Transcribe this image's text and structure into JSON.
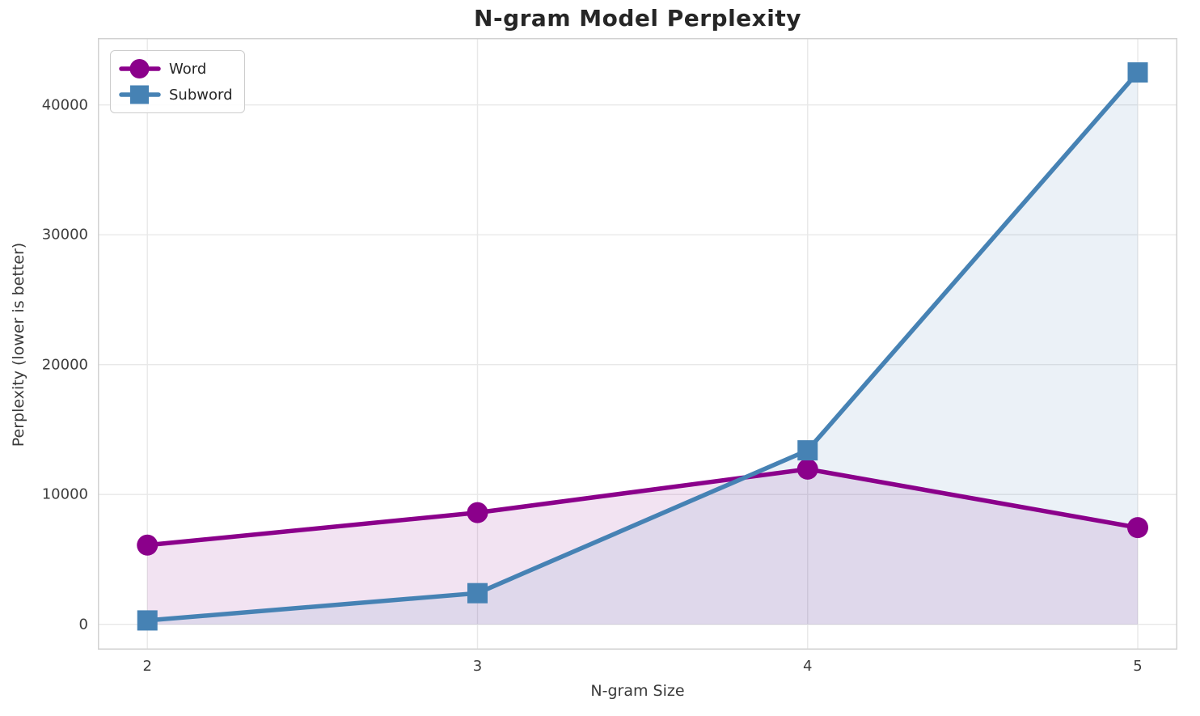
{
  "chart_data": {
    "type": "line",
    "title": "N-gram Model Perplexity",
    "xlabel": "N-gram Size",
    "ylabel": "Perplexity (lower is better)",
    "x": [
      2,
      3,
      4,
      5
    ],
    "series": [
      {
        "name": "Word",
        "values": [
          6100,
          8600,
          11950,
          7450
        ],
        "color": "#8B008B",
        "marker": "circle"
      },
      {
        "name": "Subword",
        "values": [
          300,
          2400,
          13400,
          42500
        ],
        "color": "#4682B4",
        "marker": "square"
      }
    ],
    "xticks": [
      2,
      3,
      4,
      5
    ],
    "yticks": [
      0,
      10000,
      20000,
      30000,
      40000
    ],
    "xlim": [
      1.85,
      5.12
    ],
    "ylim": [
      -1950,
      45150
    ],
    "grid": true,
    "legend_position": "upper left",
    "fill_to_zero": true,
    "fill_alpha": 0.11,
    "colors": {
      "background": "#ffffff",
      "grid": "#e8e8e8",
      "spine": "#d2d2d2",
      "tick_text": "#3d3d3d",
      "axis_text": "#3a3a3a",
      "title_text": "#262626"
    }
  }
}
